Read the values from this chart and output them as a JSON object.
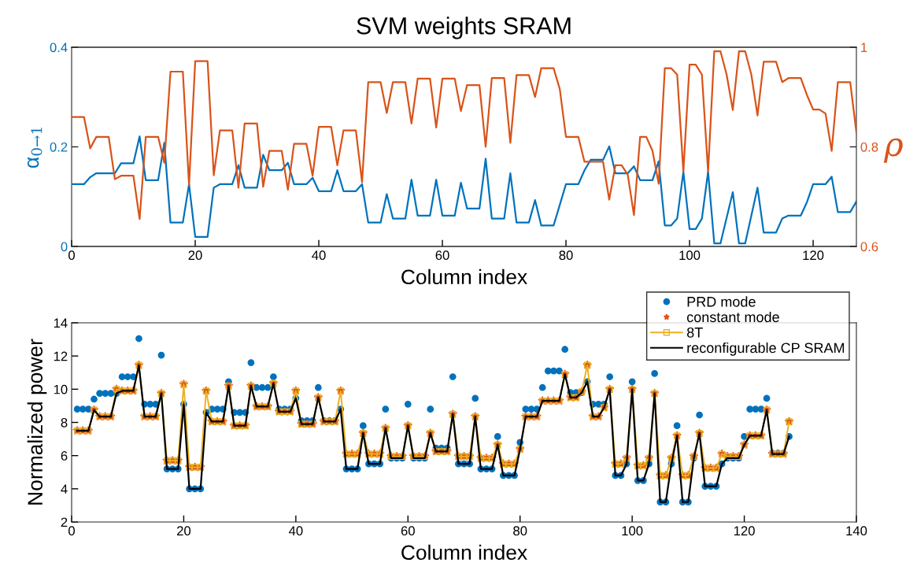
{
  "chart_data": [
    {
      "type": "line",
      "title": "SVM weights SRAM",
      "xlabel": "Column index",
      "ylabel": "α$_{0→1}$",
      "y2label": "ρ",
      "xlim": [
        0,
        127
      ],
      "xticks": [
        0,
        20,
        40,
        60,
        80,
        100,
        120
      ],
      "ylim": [
        0,
        0.4
      ],
      "yticks": [
        0,
        0.2,
        0.4
      ],
      "y2lim": [
        0.6,
        1
      ],
      "y2ticks": [
        0.6,
        0.8,
        1
      ],
      "grid": false,
      "legend": false,
      "line_style": "solid",
      "marker": "none",
      "series": [
        {
          "color": "#0072bd",
          "axis": "y",
          "x": [
            0,
            2,
            3,
            4,
            7,
            8,
            10,
            11,
            12,
            14,
            15,
            16,
            18,
            19,
            20,
            22,
            23,
            24,
            26,
            27,
            28,
            30,
            31,
            32,
            34,
            35,
            36,
            38,
            39,
            40,
            42,
            43,
            44,
            46,
            47,
            48,
            50,
            51,
            52,
            54,
            55,
            56,
            58,
            59,
            60,
            62,
            63,
            64,
            66,
            67,
            68,
            70,
            71,
            72,
            74,
            75,
            76,
            78,
            80,
            82,
            83,
            84,
            86,
            87,
            88,
            90,
            91,
            92,
            94,
            95,
            96,
            97,
            98,
            99,
            100,
            101,
            102,
            103,
            104,
            105,
            107,
            108,
            109,
            111,
            112,
            114,
            115,
            116,
            118,
            119,
            120,
            122,
            123,
            124,
            126,
            127
          ],
          "values": [
            0.125,
            0.125,
            0.139,
            0.147,
            0.147,
            0.167,
            0.167,
            0.221,
            0.133,
            0.133,
            0.208,
            0.048,
            0.048,
            0.125,
            0.019,
            0.019,
            0.118,
            0.125,
            0.125,
            0.163,
            0.118,
            0.118,
            0.184,
            0.153,
            0.153,
            0.168,
            0.125,
            0.125,
            0.138,
            0.111,
            0.111,
            0.153,
            0.111,
            0.111,
            0.125,
            0.048,
            0.048,
            0.105,
            0.056,
            0.056,
            0.134,
            0.062,
            0.062,
            0.134,
            0.062,
            0.062,
            0.128,
            0.076,
            0.076,
            0.176,
            0.056,
            0.056,
            0.147,
            0.048,
            0.048,
            0.093,
            0.042,
            0.042,
            0.125,
            0.125,
            0.153,
            0.174,
            0.174,
            0.201,
            0.147,
            0.147,
            0.161,
            0.133,
            0.133,
            0.171,
            0.042,
            0.042,
            0.056,
            0.15,
            0.035,
            0.035,
            0.056,
            0.15,
            0.006,
            0.006,
            0.109,
            0.006,
            0.006,
            0.118,
            0.028,
            0.028,
            0.056,
            0.062,
            0.062,
            0.089,
            0.125,
            0.125,
            0.14,
            0.069,
            0.069,
            0.09
          ]
        },
        {
          "color": "#d95319",
          "axis": "y2",
          "x": [
            0,
            2,
            3,
            4,
            6,
            7,
            8,
            10,
            11,
            12,
            14,
            15,
            16,
            18,
            19,
            20,
            22,
            23,
            24,
            26,
            27,
            28,
            30,
            31,
            32,
            34,
            35,
            36,
            38,
            39,
            40,
            42,
            43,
            44,
            46,
            47,
            48,
            50,
            51,
            52,
            54,
            55,
            56,
            58,
            59,
            60,
            62,
            63,
            64,
            66,
            67,
            68,
            70,
            71,
            72,
            74,
            75,
            76,
            78,
            79,
            80,
            82,
            83,
            86,
            87,
            88,
            89,
            90,
            91,
            92,
            93,
            94,
            95,
            96,
            97,
            98,
            99,
            100,
            101,
            102,
            103,
            104,
            105,
            106,
            107,
            108,
            109,
            110,
            111,
            112,
            114,
            115,
            116,
            118,
            119,
            120,
            121,
            122,
            123,
            124,
            126,
            127
          ],
          "values": [
            0.86,
            0.86,
            0.797,
            0.82,
            0.82,
            0.735,
            0.742,
            0.742,
            0.655,
            0.82,
            0.82,
            0.768,
            0.951,
            0.951,
            0.723,
            0.972,
            0.972,
            0.743,
            0.833,
            0.833,
            0.718,
            0.847,
            0.847,
            0.72,
            0.792,
            0.792,
            0.714,
            0.806,
            0.806,
            0.742,
            0.84,
            0.84,
            0.763,
            0.833,
            0.833,
            0.729,
            0.93,
            0.93,
            0.868,
            0.93,
            0.93,
            0.847,
            0.937,
            0.937,
            0.839,
            0.937,
            0.937,
            0.872,
            0.924,
            0.924,
            0.8,
            0.938,
            0.938,
            0.808,
            0.944,
            0.944,
            0.9,
            0.958,
            0.958,
            0.916,
            0.82,
            0.82,
            0.77,
            0.77,
            0.694,
            0.763,
            0.763,
            0.744,
            0.663,
            0.82,
            0.82,
            0.792,
            0.726,
            0.958,
            0.958,
            0.945,
            0.75,
            0.965,
            0.965,
            0.945,
            0.75,
            0.992,
            0.992,
            0.945,
            0.874,
            0.992,
            0.992,
            0.945,
            0.863,
            0.971,
            0.971,
            0.93,
            0.938,
            0.938,
            0.904,
            0.875,
            0.875,
            0.867,
            0.792,
            0.93,
            0.93,
            0.829
          ]
        }
      ]
    },
    {
      "type": "line",
      "xlabel": "Column index",
      "ylabel": "Normalized power",
      "xlim": [
        0,
        140
      ],
      "xticks": [
        0,
        20,
        40,
        60,
        80,
        100,
        120,
        140
      ],
      "ylim": [
        2,
        14
      ],
      "yticks": [
        2,
        4,
        6,
        8,
        10,
        12,
        14
      ],
      "grid": false,
      "legend": "top right",
      "x": [
        1,
        2,
        3,
        4,
        5,
        6,
        7,
        8,
        9,
        10,
        11,
        12,
        13,
        14,
        15,
        16,
        17,
        18,
        19,
        20,
        21,
        22,
        23,
        24,
        25,
        26,
        27,
        28,
        29,
        30,
        31,
        32,
        33,
        34,
        35,
        36,
        37,
        38,
        39,
        40,
        41,
        42,
        43,
        44,
        45,
        46,
        47,
        48,
        49,
        50,
        51,
        52,
        53,
        54,
        55,
        56,
        57,
        58,
        59,
        60,
        61,
        62,
        63,
        64,
        65,
        66,
        67,
        68,
        69,
        70,
        71,
        72,
        73,
        74,
        75,
        76,
        77,
        78,
        79,
        80,
        81,
        82,
        83,
        84,
        85,
        86,
        87,
        88,
        89,
        90,
        91,
        92,
        93,
        94,
        95,
        96,
        97,
        98,
        99,
        100,
        101,
        102,
        103,
        104,
        105,
        106,
        107,
        108,
        109,
        110,
        111,
        112,
        113,
        114,
        115,
        116,
        117,
        118,
        119,
        120,
        121,
        122,
        123,
        124,
        125,
        126,
        127,
        128
      ],
      "series": [
        {
          "name": "PRD mode",
          "type": "scatter",
          "marker": "circle",
          "color": "#0072bd",
          "values": [
            8.8,
            8.8,
            8.8,
            9.4,
            9.75,
            9.75,
            9.75,
            9.75,
            10.75,
            10.75,
            10.75,
            13.05,
            9.1,
            9.1,
            9.1,
            12.05,
            5.2,
            5.2,
            5.2,
            9.1,
            4.0,
            4.0,
            4.0,
            8.6,
            8.8,
            8.8,
            8.8,
            10.45,
            8.6,
            8.6,
            8.6,
            11.6,
            10.1,
            10.1,
            10.1,
            10.75,
            8.8,
            8.8,
            8.8,
            9.45,
            8.1,
            8.1,
            8.1,
            10.1,
            8.1,
            8.1,
            8.1,
            8.8,
            5.2,
            5.2,
            5.2,
            7.8,
            5.5,
            5.5,
            5.5,
            8.8,
            5.85,
            5.85,
            5.85,
            9.1,
            5.85,
            5.85,
            5.85,
            8.8,
            6.45,
            6.45,
            6.45,
            10.75,
            5.5,
            5.5,
            5.5,
            9.45,
            5.2,
            5.2,
            5.2,
            7.15,
            4.8,
            4.8,
            4.8,
            6.8,
            8.8,
            8.8,
            8.8,
            10.1,
            11.1,
            11.1,
            11.1,
            12.4,
            9.8,
            9.8,
            9.8,
            10.45,
            9.1,
            9.1,
            9.1,
            10.75,
            4.8,
            4.8,
            5.5,
            10.45,
            4.5,
            4.5,
            5.5,
            10.95,
            3.2,
            3.2,
            5.5,
            7.8,
            3.2,
            3.2,
            5.85,
            8.45,
            4.15,
            4.15,
            4.15,
            5.5,
            5.85,
            5.85,
            5.85,
            7.15,
            8.8,
            8.8,
            8.8,
            9.45,
            6.15,
            6.15,
            6.15,
            7.15
          ]
        },
        {
          "name": "constant mode",
          "type": "scatter",
          "marker": "star",
          "color": "#d95319",
          "values": [
            7.5,
            7.5,
            7.5,
            8.75,
            8.35,
            8.35,
            8.35,
            10.0,
            9.9,
            9.9,
            9.9,
            11.45,
            8.35,
            8.35,
            8.35,
            9.75,
            5.7,
            5.7,
            5.7,
            10.3,
            5.3,
            5.3,
            5.3,
            9.9,
            8.05,
            8.05,
            8.05,
            10.2,
            7.8,
            7.8,
            7.8,
            10.2,
            8.95,
            8.95,
            8.95,
            10.35,
            8.65,
            8.65,
            8.65,
            9.9,
            7.9,
            7.9,
            7.9,
            9.5,
            8.05,
            8.05,
            8.05,
            9.9,
            6.1,
            6.1,
            6.1,
            7.35,
            6.1,
            6.1,
            6.1,
            7.65,
            5.95,
            5.95,
            5.95,
            7.8,
            5.95,
            5.95,
            5.95,
            7.35,
            6.25,
            6.25,
            6.25,
            8.5,
            5.95,
            5.95,
            5.95,
            8.35,
            5.85,
            5.85,
            5.85,
            6.65,
            5.5,
            5.5,
            5.5,
            6.4,
            8.35,
            8.35,
            8.35,
            9.3,
            9.3,
            9.3,
            9.3,
            10.9,
            9.5,
            9.5,
            9.85,
            11.45,
            8.35,
            8.35,
            8.9,
            10.0,
            5.5,
            5.5,
            5.85,
            10.0,
            5.4,
            5.4,
            5.85,
            9.75,
            4.8,
            4.8,
            5.85,
            7.2,
            4.8,
            4.8,
            5.95,
            7.35,
            5.25,
            5.25,
            5.25,
            6.1,
            5.95,
            5.95,
            5.95,
            6.65,
            7.2,
            7.2,
            7.2,
            8.75,
            6.1,
            6.1,
            6.1,
            8.05
          ]
        },
        {
          "name": "8T",
          "type": "line",
          "marker": "square",
          "line_style": "solid",
          "color": "#edb120",
          "values": [
            7.5,
            7.5,
            7.5,
            8.75,
            8.35,
            8.35,
            8.35,
            10.0,
            9.9,
            9.9,
            9.9,
            11.45,
            8.35,
            8.35,
            8.35,
            9.75,
            5.7,
            5.7,
            5.7,
            10.3,
            5.3,
            5.3,
            5.3,
            9.9,
            8.05,
            8.05,
            8.05,
            10.2,
            7.8,
            7.8,
            7.8,
            10.2,
            8.95,
            8.95,
            8.95,
            10.35,
            8.65,
            8.65,
            8.65,
            9.9,
            7.9,
            7.9,
            7.9,
            9.5,
            8.05,
            8.05,
            8.05,
            9.9,
            6.1,
            6.1,
            6.1,
            7.35,
            6.1,
            6.1,
            6.1,
            7.65,
            5.95,
            5.95,
            5.95,
            7.8,
            5.95,
            5.95,
            5.95,
            7.35,
            6.25,
            6.25,
            6.25,
            8.5,
            5.95,
            5.95,
            5.95,
            8.35,
            5.85,
            5.85,
            5.85,
            6.65,
            5.5,
            5.5,
            5.5,
            6.4,
            8.35,
            8.35,
            8.35,
            9.3,
            9.3,
            9.3,
            9.3,
            10.9,
            9.5,
            9.5,
            9.85,
            11.45,
            8.35,
            8.35,
            8.9,
            10.0,
            5.5,
            5.5,
            5.85,
            10.0,
            5.4,
            5.4,
            5.85,
            9.75,
            4.8,
            4.8,
            5.85,
            7.2,
            4.8,
            4.8,
            5.95,
            7.35,
            5.25,
            5.25,
            5.25,
            6.1,
            5.95,
            5.95,
            5.95,
            6.65,
            7.2,
            7.2,
            7.2,
            8.75,
            6.1,
            6.1,
            6.1,
            8.05
          ]
        },
        {
          "name": "reconfigurable CP SRAM",
          "type": "line",
          "marker": "none",
          "line_style": "solid",
          "color": "#000000",
          "values": [
            7.5,
            7.5,
            7.5,
            8.75,
            8.35,
            8.35,
            8.35,
            9.75,
            9.9,
            9.9,
            9.9,
            11.45,
            8.35,
            8.35,
            8.35,
            9.75,
            5.2,
            5.2,
            5.2,
            9.1,
            4.0,
            4.0,
            4.0,
            8.6,
            8.05,
            8.05,
            8.05,
            10.2,
            7.8,
            7.8,
            7.8,
            10.2,
            8.95,
            8.95,
            8.95,
            10.35,
            8.65,
            8.65,
            8.65,
            9.45,
            7.9,
            7.9,
            7.9,
            9.5,
            8.05,
            8.05,
            8.05,
            8.8,
            5.2,
            5.2,
            5.2,
            7.35,
            5.5,
            5.5,
            5.5,
            7.65,
            5.85,
            5.85,
            5.85,
            7.8,
            5.85,
            5.85,
            5.85,
            7.35,
            6.25,
            6.25,
            6.25,
            8.5,
            5.5,
            5.5,
            5.5,
            8.35,
            5.2,
            5.2,
            5.2,
            6.65,
            4.8,
            4.8,
            4.8,
            6.4,
            8.35,
            8.35,
            8.35,
            9.3,
            9.3,
            9.3,
            9.3,
            10.9,
            9.5,
            9.5,
            9.8,
            10.45,
            8.35,
            8.35,
            8.9,
            10.0,
            4.8,
            4.8,
            5.5,
            10.0,
            4.5,
            4.5,
            5.5,
            9.75,
            3.2,
            3.2,
            5.5,
            7.2,
            3.2,
            3.2,
            5.85,
            7.35,
            4.15,
            4.15,
            4.15,
            5.5,
            5.85,
            5.85,
            5.85,
            6.65,
            7.2,
            7.2,
            7.2,
            8.75,
            6.1,
            6.1,
            6.1,
            7.15
          ]
        }
      ]
    }
  ]
}
